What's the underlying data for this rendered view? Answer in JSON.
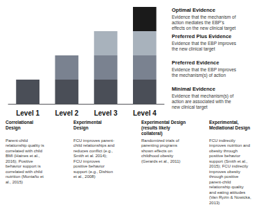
{
  "chart_data": {
    "type": "bar",
    "stacked": true,
    "categories": [
      "Level 1",
      "Level 2",
      "Level 3",
      "Level 4"
    ],
    "series": [
      {
        "name": "Minimal Evidence",
        "color": "#4a4e57",
        "values": [
          1.0,
          1.0,
          1.0,
          1.0
        ],
        "description": "Evidence that mechanism(s) of\naction are associated with the\nnew clinical target"
      },
      {
        "name": "Preferred Evidence",
        "color": "#7a8290",
        "values": [
          null,
          1.0,
          1.0,
          1.0
        ],
        "description": "Evidence that the EBP improves\nthe mechanism(s) of action"
      },
      {
        "name": "Preferred Plus Evidence",
        "color": "#a8b2bc",
        "values": [
          null,
          null,
          1.0,
          1.0
        ],
        "description": "Evidence that the EBP improves\nthe new clinical target"
      },
      {
        "name": "Optimal Evidence",
        "color": "#1a1a1a",
        "values": [
          null,
          null,
          null,
          1.0
        ],
        "description": "Evidence that the mechanism of\naction mediates the EBP's\neffects on the new clinical target"
      }
    ],
    "ylim": [
      0,
      4
    ],
    "grid": false,
    "tick_labels": "x",
    "legend": "right",
    "annotations": [
      {
        "category": "Level 1",
        "title": "Correlational\nDesign",
        "text": "Parent-child\nrelationship quality is\ncorrelated with child\nBMI (Haines et al.,\n2016); Positive\nbehavior support is\ncorrelated with child\nnutrition (Montaño et\nal., 2015)"
      },
      {
        "category": "Level 2",
        "title": "Experimental\nDesign",
        "text": "FCU improves parent-\nchild relationships and\nreduces conflict (e.g.,\nSmith et al. 2014);\nFCU improves\npositive behavior\nsupport (e.g., Dishion\net al., 2008)"
      },
      {
        "category": "Level 3",
        "title": "Experimental Design\n(results likely\ncollateral)",
        "text": "Randomized trials of\nparenting programs\nshown effects on\nchildhood obesity\n(Gerards et al., 2011)"
      },
      {
        "category": "Level 4",
        "title": "Experimental,\nMediational Design",
        "text": "FCU indirectly\nimproves nutrition and\nobesity through\npositive behavior\nsupport (Smith et al.,\n2015); FCU indirectly\nimproves obesity\nthrough positive\nparent-child\nrelationship quality\nand eating attitudes\n(Van Ryzin & Nowicka,\n2013)"
      }
    ]
  }
}
